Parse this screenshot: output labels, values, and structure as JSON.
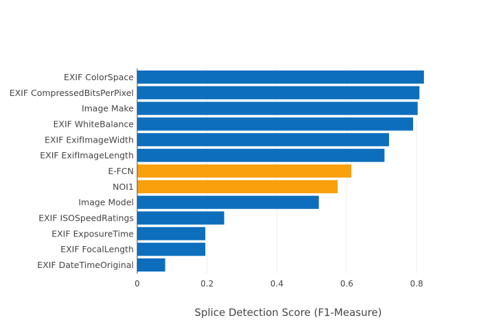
{
  "chart_data": {
    "type": "bar",
    "orientation": "horizontal",
    "title": "",
    "xlabel": "Splice Detection Score (F1-Measure)",
    "ylabel": "",
    "xlim": [
      0,
      0.83
    ],
    "xticks": [
      "0",
      "0.2",
      "0.4",
      "0.6",
      "0.8"
    ],
    "xtick_values": [
      0,
      0.2,
      0.4,
      0.6,
      0.8
    ],
    "grid": true,
    "categories": [
      "EXIF ColorSpace",
      "EXIF CompressedBitsPerPixel",
      "Image Make",
      "EXIF WhiteBalance",
      "EXIF ExifImageWidth",
      "EXIF ExifImageLength",
      "E-FCN",
      "NOI1",
      "Image Model",
      "EXIF ISOSpeedRatings",
      "EXIF ExposureTime",
      "EXIF FocalLength",
      "EXIF DateTimeOriginal"
    ],
    "values": [
      0.821,
      0.808,
      0.803,
      0.79,
      0.721,
      0.708,
      0.613,
      0.574,
      0.52,
      0.249,
      0.195,
      0.195,
      0.08
    ],
    "highlight": [
      false,
      false,
      false,
      false,
      false,
      false,
      true,
      true,
      false,
      false,
      false,
      false,
      false
    ],
    "colors": {
      "default": "#0d6ebd",
      "highlight": "#f9a00c"
    }
  }
}
